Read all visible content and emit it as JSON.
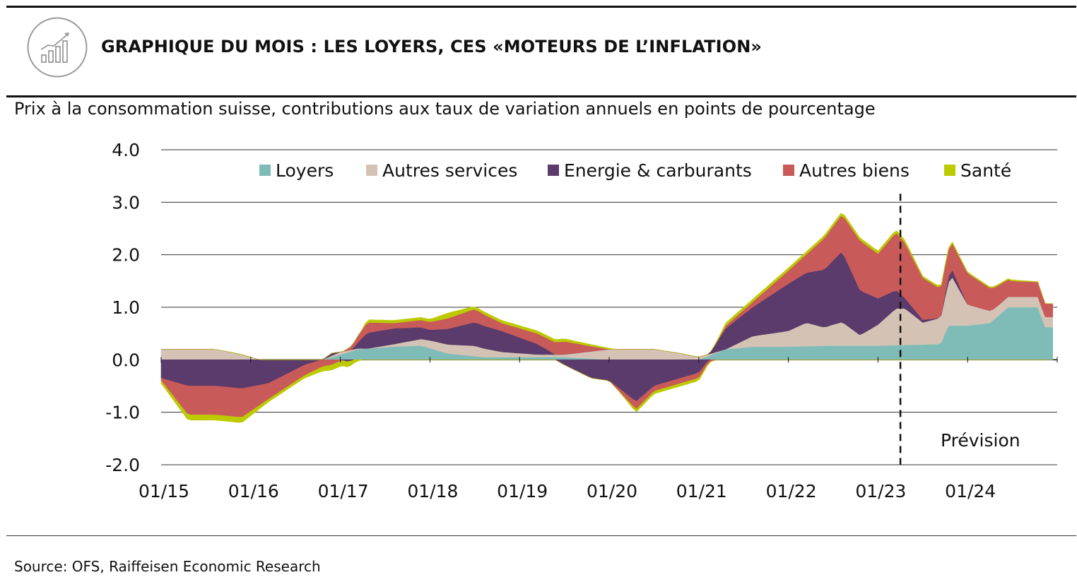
{
  "header": {
    "title": "GRAPHIQUE DU MOIS : LES LOYERS, CES «MOTEURS DE L’INFLATION»",
    "logo_icon": "rising-bar-chart-icon"
  },
  "subtitle": "Prix à la consommation suisse, contributions aux taux de variation annuels en points de pourcentage",
  "source": "Source: OFS, Raiffeisen Economic Research",
  "forecast_label": "Prévision",
  "chart_data": {
    "type": "area",
    "stacked": true,
    "x_labels": [
      "01/15",
      "01/16",
      "01/17",
      "01/18",
      "01/19",
      "01/20",
      "01/21",
      "01/22",
      "01/23",
      "01/24"
    ],
    "x_start": "01/15",
    "x_end": "12/24",
    "ylim": [
      -2.0,
      4.0
    ],
    "yticks": [
      4.0,
      3.0,
      2.0,
      1.0,
      0.0,
      -1.0,
      -2.0
    ],
    "ytick_labels": [
      "4.0",
      "3.0",
      "2.0",
      "1.0",
      "0.0",
      "-1.0",
      "-2.0"
    ],
    "grid": true,
    "legend_position": "top",
    "forecast_start": "04/23",
    "colors": {
      "loyers": "#7fbcb8",
      "autres_services": "#d4c3b4",
      "energie": "#5b3b6b",
      "autres_biens": "#c95a5a",
      "sante": "#bccb00"
    },
    "series": [
      {
        "name": "Loyers",
        "color": "#7fbcb8",
        "points": [
          [
            2015,
            0
          ],
          [
            2016.5,
            0
          ],
          [
            2016.8,
            0
          ],
          [
            2017.2,
            0.2
          ],
          [
            2017.6,
            0.25
          ],
          [
            2017.9,
            0.27
          ],
          [
            2018.2,
            0.12
          ],
          [
            2018.6,
            0.05
          ],
          [
            2019,
            0.05
          ],
          [
            2019.5,
            0.05
          ],
          [
            2020,
            0
          ],
          [
            2021,
            0
          ],
          [
            2021.3,
            0.2
          ],
          [
            2021.6,
            0.25
          ],
          [
            2022,
            0.25
          ],
          [
            2022.5,
            0.27
          ],
          [
            2023,
            0.27
          ],
          [
            2023.3,
            0.28
          ],
          [
            2023.7,
            0.3
          ],
          [
            2023.78,
            0.65
          ],
          [
            2024,
            0.65
          ],
          [
            2024.25,
            0.7
          ],
          [
            2024.45,
            1.0
          ],
          [
            2024.8,
            1.0
          ],
          [
            2024.85,
            0.62
          ],
          [
            2024.95,
            0.62
          ]
        ]
      },
      {
        "name": "Autres services",
        "color": "#d4c3b4",
        "points": [
          [
            2015,
            0.2
          ],
          [
            2015.3,
            0.2
          ],
          [
            2015.6,
            0.2
          ],
          [
            2015.9,
            0.1
          ],
          [
            2016.1,
            0
          ],
          [
            2016.5,
            0
          ],
          [
            2016.8,
            0
          ],
          [
            2017,
            0.05
          ],
          [
            2017.3,
            0
          ],
          [
            2017.6,
            0.05
          ],
          [
            2018,
            0.15
          ],
          [
            2018.5,
            0.2
          ],
          [
            2018.8,
            0.1
          ],
          [
            2019.2,
            0.05
          ],
          [
            2019.5,
            0.05
          ],
          [
            2020,
            0.2
          ],
          [
            2020.5,
            0.2
          ],
          [
            2020.8,
            0.12
          ],
          [
            2021,
            0.05
          ],
          [
            2021.3,
            0
          ],
          [
            2021.6,
            0.2
          ],
          [
            2022,
            0.3
          ],
          [
            2022.2,
            0.45
          ],
          [
            2022.4,
            0.35
          ],
          [
            2022.6,
            0.45
          ],
          [
            2022.8,
            0.2
          ],
          [
            2023,
            0.4
          ],
          [
            2023.2,
            0.7
          ],
          [
            2023.3,
            0.7
          ],
          [
            2023.5,
            0.42
          ],
          [
            2023.7,
            0.5
          ],
          [
            2023.82,
            0.95
          ],
          [
            2024,
            0.4
          ],
          [
            2024.3,
            0.2
          ],
          [
            2024.5,
            0.2
          ],
          [
            2024.8,
            0.2
          ],
          [
            2024.85,
            0.2
          ],
          [
            2024.95,
            0.2
          ]
        ]
      },
      {
        "name": "Energie & carburants",
        "color": "#5b3b6b",
        "points": [
          [
            2015,
            -0.35
          ],
          [
            2015.3,
            -0.5
          ],
          [
            2015.6,
            -0.5
          ],
          [
            2015.9,
            -0.55
          ],
          [
            2016.2,
            -0.45
          ],
          [
            2016.6,
            -0.1
          ],
          [
            2016.9,
            0.05
          ],
          [
            2017.1,
            -0.05
          ],
          [
            2017.3,
            0.3
          ],
          [
            2017.6,
            0.3
          ],
          [
            2018,
            0.2
          ],
          [
            2018.2,
            0.3
          ],
          [
            2018.5,
            0.45
          ],
          [
            2018.8,
            0.4
          ],
          [
            2019.2,
            0.2
          ],
          [
            2019.5,
            -0.1
          ],
          [
            2019.8,
            -0.35
          ],
          [
            2020,
            -0.4
          ],
          [
            2020.3,
            -0.8
          ],
          [
            2020.5,
            -0.5
          ],
          [
            2020.8,
            -0.35
          ],
          [
            2021,
            -0.25
          ],
          [
            2021.3,
            0.4
          ],
          [
            2021.6,
            0.55
          ],
          [
            2022,
            0.9
          ],
          [
            2022.2,
            0.95
          ],
          [
            2022.4,
            1.1
          ],
          [
            2022.6,
            1.35
          ],
          [
            2022.8,
            0.85
          ],
          [
            2023,
            0.5
          ],
          [
            2023.2,
            0.35
          ],
          [
            2023.3,
            0.2
          ],
          [
            2023.5,
            0.05
          ],
          [
            2023.7,
            0.0
          ],
          [
            2023.82,
            0.15
          ],
          [
            2024,
            0.0
          ],
          [
            2024.5,
            0
          ],
          [
            2024.95,
            0
          ]
        ]
      },
      {
        "name": "Autres biens",
        "color": "#c95a5a",
        "points": [
          [
            2015,
            -0.05
          ],
          [
            2015.3,
            -0.55
          ],
          [
            2015.6,
            -0.55
          ],
          [
            2015.9,
            -0.55
          ],
          [
            2016.2,
            -0.3
          ],
          [
            2016.6,
            -0.2
          ],
          [
            2016.9,
            -0.1
          ],
          [
            2017.1,
            0.05
          ],
          [
            2017.3,
            0.2
          ],
          [
            2017.6,
            0.1
          ],
          [
            2018,
            0.15
          ],
          [
            2018.2,
            0.2
          ],
          [
            2018.5,
            0.25
          ],
          [
            2018.8,
            0.15
          ],
          [
            2019.2,
            0.2
          ],
          [
            2019.5,
            0.25
          ],
          [
            2019.8,
            0.1
          ],
          [
            2020,
            0
          ],
          [
            2020.3,
            -0.15
          ],
          [
            2020.5,
            -0.1
          ],
          [
            2020.8,
            -0.1
          ],
          [
            2021,
            -0.1
          ],
          [
            2021.3,
            0.05
          ],
          [
            2021.6,
            0.1
          ],
          [
            2022,
            0.25
          ],
          [
            2022.2,
            0.35
          ],
          [
            2022.4,
            0.6
          ],
          [
            2022.6,
            0.7
          ],
          [
            2022.8,
            0.95
          ],
          [
            2023,
            0.85
          ],
          [
            2023.2,
            1.1
          ],
          [
            2023.3,
            1.05
          ],
          [
            2023.5,
            0.8
          ],
          [
            2023.7,
            0.55
          ],
          [
            2023.82,
            0.5
          ],
          [
            2024,
            0.6
          ],
          [
            2024.3,
            0.4
          ],
          [
            2024.5,
            0.3
          ],
          [
            2024.8,
            0.28
          ],
          [
            2024.85,
            0.25
          ],
          [
            2024.95,
            0.25
          ]
        ]
      },
      {
        "name": "Santé",
        "color": "#bccb00",
        "points": [
          [
            2015,
            -0.05
          ],
          [
            2015.3,
            -0.1
          ],
          [
            2015.6,
            -0.1
          ],
          [
            2015.9,
            -0.1
          ],
          [
            2016.2,
            -0.05
          ],
          [
            2016.6,
            -0.05
          ],
          [
            2016.9,
            -0.1
          ],
          [
            2017.1,
            -0.1
          ],
          [
            2017.3,
            0.05
          ],
          [
            2017.6,
            0.05
          ],
          [
            2018,
            0.05
          ],
          [
            2018.2,
            0.1
          ],
          [
            2018.5,
            0.05
          ],
          [
            2018.8,
            0.05
          ],
          [
            2019.2,
            0.05
          ],
          [
            2019.5,
            0.05
          ],
          [
            2019.8,
            0.03
          ],
          [
            2020,
            0.02
          ],
          [
            2020.3,
            -0.05
          ],
          [
            2020.5,
            -0.05
          ],
          [
            2020.8,
            -0.05
          ],
          [
            2021,
            -0.05
          ],
          [
            2021.3,
            0.05
          ],
          [
            2021.6,
            0.05
          ],
          [
            2022,
            0.05
          ],
          [
            2022.2,
            0.05
          ],
          [
            2022.4,
            0.05
          ],
          [
            2022.6,
            0.05
          ],
          [
            2022.8,
            0.05
          ],
          [
            2023,
            0.05
          ],
          [
            2023.2,
            0.05
          ],
          [
            2023.3,
            0.05
          ],
          [
            2023.5,
            0.03
          ],
          [
            2023.7,
            0.03
          ],
          [
            2023.82,
            0.03
          ],
          [
            2024,
            0.02
          ],
          [
            2024.5,
            0.02
          ],
          [
            2024.95,
            0.0
          ]
        ]
      }
    ]
  }
}
